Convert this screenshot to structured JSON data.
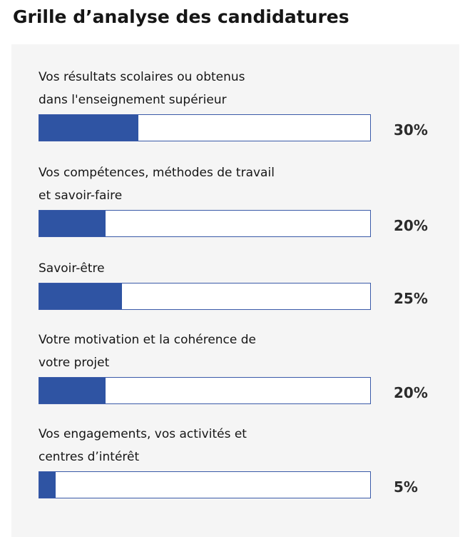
{
  "title": "Grille d’analyse des candidatures",
  "chart_data": {
    "type": "bar",
    "orientation": "horizontal",
    "title": "Grille d’analyse des candidatures",
    "ylim": [
      0,
      100
    ],
    "unit": "%",
    "colors": {
      "fill": "#2f54a3",
      "track": "#ffffff",
      "track_border": "#3a5aa8",
      "panel": "#f5f5f5"
    },
    "categories": [
      "Vos résultats scolaires ou obtenus\ndans l'enseignement supérieur",
      "Vos compétences, méthodes de travail\net savoir-faire",
      "Savoir-être",
      "Votre motivation et la cohérence de\nvotre projet",
      "Vos engagements, vos activités et\ncentres d’intérêt"
    ],
    "values": [
      30,
      20,
      25,
      20,
      5
    ],
    "value_labels": [
      "30%",
      "20%",
      "25%",
      "20%",
      "5%"
    ]
  }
}
